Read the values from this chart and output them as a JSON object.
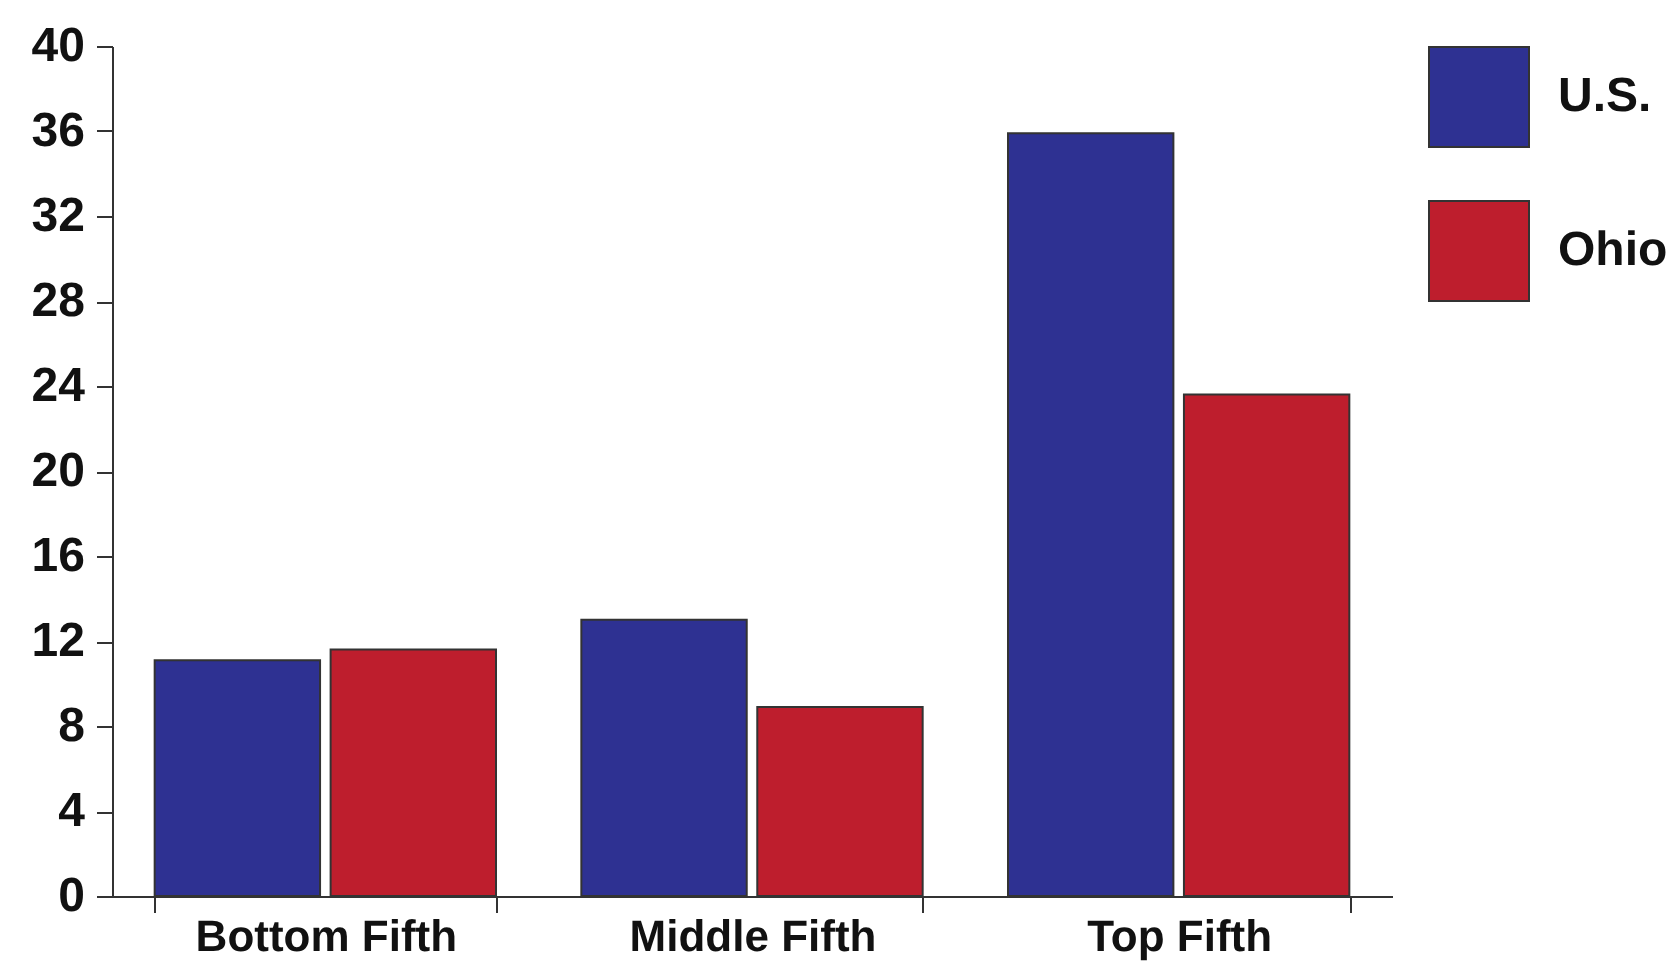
{
  "chart_data": {
    "type": "bar",
    "categories": [
      "Bottom Fifth",
      "Middle Fifth",
      "Top Fifth"
    ],
    "series": [
      {
        "name": "U.S.",
        "color": "#2e3192",
        "values": [
          11.1,
          13.0,
          35.9
        ]
      },
      {
        "name": "Ohio",
        "color": "#be1e2d",
        "values": [
          11.6,
          8.9,
          23.6
        ]
      }
    ],
    "ylim": [
      0,
      40
    ],
    "yticks": [
      0,
      4,
      8,
      12,
      16,
      20,
      24,
      28,
      32,
      36,
      40
    ],
    "grid": false,
    "legend": "top right"
  }
}
